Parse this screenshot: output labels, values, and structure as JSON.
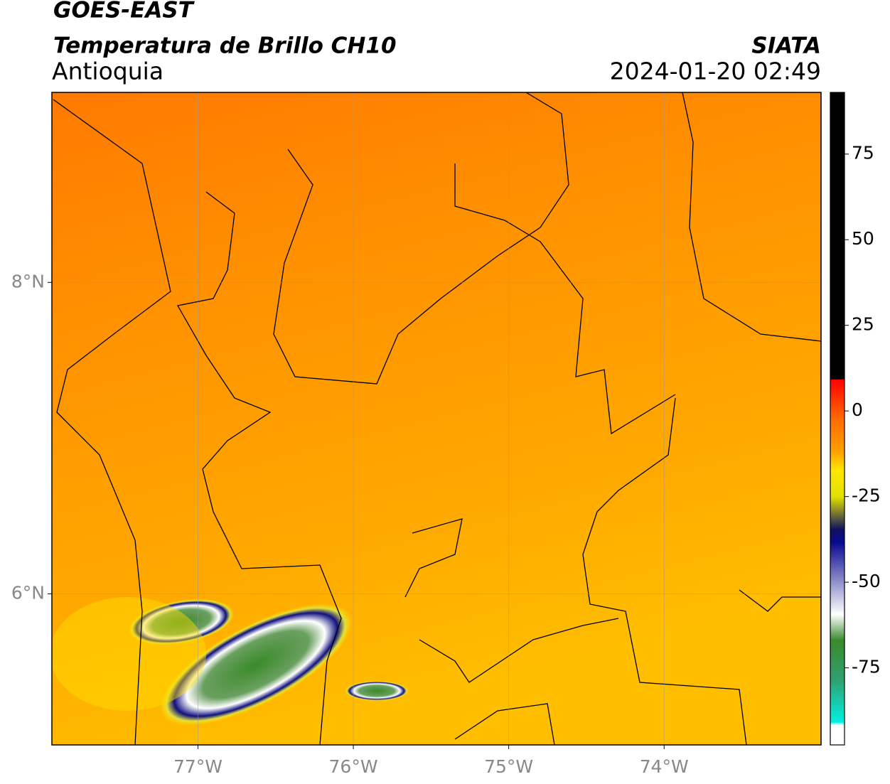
{
  "header": {
    "title": "GOES-EAST",
    "subtitle": "Temperatura de Brillo CH10",
    "region": "Antioquia",
    "source": "SIATA",
    "timestamp": "2024-01-20 02:49"
  },
  "map": {
    "xlim": [
      -77.94,
      -72.99
    ],
    "ylim": [
      5.03,
      9.22
    ],
    "xticks": [
      {
        "value": -77,
        "label": "77°W"
      },
      {
        "value": -76,
        "label": "76°W"
      },
      {
        "value": -75,
        "label": "75°W"
      },
      {
        "value": -74,
        "label": "74°W"
      }
    ],
    "yticks": [
      {
        "value": 8,
        "label": "8°N"
      },
      {
        "value": 6,
        "label": "6°N"
      }
    ],
    "grid": true
  },
  "colorbar": {
    "range": [
      -97.5,
      93
    ],
    "ticks": [
      75,
      50,
      25,
      0,
      -25,
      -50,
      -75
    ]
  }
}
